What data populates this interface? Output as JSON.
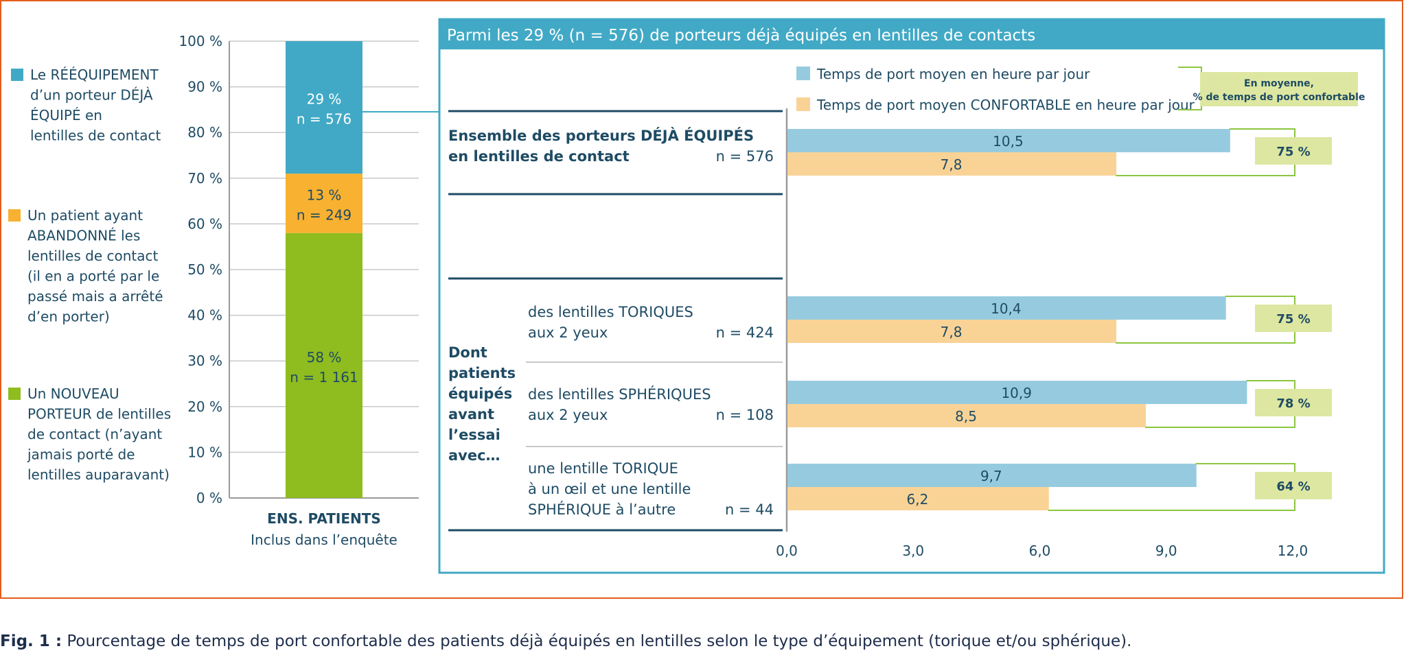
{
  "caption": {
    "label": "Fig. 1 :",
    "text": "Pourcentage de temps de port confortable des patients déjà équipés en lentilles selon le type d’équipement (torique et/ou sphérique)."
  },
  "colors": {
    "frame": "#e35d1b",
    "teal": "#41a9c5",
    "orange": "#f8b131",
    "green": "#8fbc1f",
    "light_blue": "#96cbdf",
    "light_orange": "#f9d396",
    "pct_box": "#dde7a1",
    "bracket": "#8cc63f",
    "text_dark": "#1e4b64"
  },
  "chart_data": [
    {
      "type": "bar",
      "subtype": "stacked",
      "categories": [
        "ENS. PATIENTS"
      ],
      "category_sublabel": "Inclus dans l’enquête",
      "ylim": [
        0,
        100
      ],
      "ytick_labels": [
        "0 %",
        "10 %",
        "20 %",
        "30 %",
        "40 %",
        "50 %",
        "60 %",
        "70 %",
        "80 %",
        "90 %",
        "100 %"
      ],
      "series": [
        {
          "name": "Un NOUVEAU PORTEUR de lentilles de contact (n’ayant jamais porté de lentilles auparavant)",
          "legend_lines": [
            "Un NOUVEAU",
            "PORTEUR de lentilles",
            "de contact (n’ayant",
            "jamais porté de",
            "lentilles auparavant)"
          ],
          "values": [
            58
          ],
          "label": "58 %",
          "n_label": "n = 1 161",
          "color": "#8fbc1f"
        },
        {
          "name": "Un patient ayant ABANDONNÉ les lentilles de contact (il en a porté par le passé mais a arrêté d’en porter)",
          "legend_lines": [
            "Un patient ayant",
            "ABANDONNÉ les",
            "lentilles de contact",
            "(il en a porté par le",
            "passé mais a arrêté",
            "d’en porter)"
          ],
          "values": [
            13
          ],
          "label": "13 %",
          "n_label": "n = 249",
          "color": "#f8b131"
        },
        {
          "name": "Le RÉÉQUIPEMENT d’un porteur DÉJÀ ÉQUIPÉ en lentilles de contact",
          "legend_lines": [
            "Le RÉÉQUIPEMENT",
            "d’un porteur DÉJÀ",
            "ÉQUIPÉ en",
            "lentilles de contact"
          ],
          "values": [
            29
          ],
          "label": "29 %",
          "n_label": "n = 576",
          "color": "#41a9c5"
        }
      ]
    },
    {
      "type": "bar",
      "subtype": "horizontal-grouped",
      "title": "Parmi les 29 % (n = 576) de porteurs déjà équipés en lentilles de contacts",
      "xlim": [
        0,
        12
      ],
      "xtick_labels": [
        "0,0",
        "3,0",
        "6,0",
        "9,0",
        "12,0"
      ],
      "xticks": [
        0,
        3,
        6,
        9,
        12
      ],
      "series": [
        {
          "name": "Temps de port moyen en heure par jour",
          "color": "#96cbdf"
        },
        {
          "name": "Temps de port moyen CONFORTABLE en heure par jour",
          "color": "#f9d396"
        }
      ],
      "pct_legend": [
        "En moyenne,",
        "% de temps de port confortable"
      ],
      "group_header": [
        "Dont",
        "patients",
        "équipés",
        "avant",
        "l’essai",
        "avec…"
      ],
      "groups": [
        {
          "label_lines": [
            "Ensemble des porteurs DÉJÀ ÉQUIPÉS",
            "en lentilles de contact"
          ],
          "bold": true,
          "n": "n = 576",
          "values": [
            10.5,
            7.8
          ],
          "value_labels": [
            "10,5",
            "7,8"
          ],
          "pct": "75 %"
        },
        {
          "label_lines": [
            "des lentilles TORIQUES",
            "aux 2 yeux"
          ],
          "bold": false,
          "n": "n = 424",
          "values": [
            10.4,
            7.8
          ],
          "value_labels": [
            "10,4",
            "7,8"
          ],
          "pct": "75 %"
        },
        {
          "label_lines": [
            "des lentilles SPHÉRIQUES",
            "aux 2 yeux"
          ],
          "bold": false,
          "n": "n = 108",
          "values": [
            10.9,
            8.5
          ],
          "value_labels": [
            "10,9",
            "8,5"
          ],
          "pct": "78 %"
        },
        {
          "label_lines": [
            "une lentille TORIQUE",
            "à un œil et une lentille",
            "SPHÉRIQUE à l’autre"
          ],
          "bold": false,
          "n": "n = 44",
          "values": [
            9.7,
            6.2
          ],
          "value_labels": [
            "9,7",
            "6,2"
          ],
          "pct": "64 %"
        }
      ]
    }
  ]
}
